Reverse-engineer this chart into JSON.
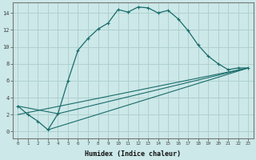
{
  "xlabel": "Humidex (Indice chaleur)",
  "bg_color": "#cce8e8",
  "grid_color": "#b0d0d0",
  "line_color": "#1a6b6b",
  "curve1_x": [
    0,
    1,
    2,
    3,
    4,
    5,
    6,
    7,
    8,
    9,
    10,
    11,
    12,
    13,
    14,
    15,
    16,
    17,
    18,
    19,
    20,
    21,
    22,
    23
  ],
  "curve1_y": [
    3.0,
    2.0,
    1.2,
    0.2,
    2.1,
    6.0,
    9.6,
    11.0,
    12.1,
    12.8,
    14.4,
    14.1,
    14.7,
    14.6,
    14.0,
    14.3,
    13.3,
    11.9,
    10.2,
    8.9,
    8.0,
    7.3,
    7.5,
    7.5
  ],
  "line2_x": [
    0,
    4,
    23
  ],
  "line2_y": [
    3.0,
    2.1,
    7.5
  ],
  "line3_x": [
    0,
    23
  ],
  "line3_y": [
    2.0,
    7.5
  ],
  "line4_x": [
    3,
    23
  ],
  "line4_y": [
    0.2,
    7.5
  ],
  "xlim": [
    -0.5,
    23.5
  ],
  "ylim": [
    -0.8,
    15.2
  ],
  "yticks": [
    0,
    2,
    4,
    6,
    8,
    10,
    12,
    14
  ],
  "xticks": [
    0,
    1,
    2,
    3,
    4,
    5,
    6,
    7,
    8,
    9,
    10,
    11,
    12,
    13,
    14,
    15,
    16,
    17,
    18,
    19,
    20,
    21,
    22,
    23
  ]
}
